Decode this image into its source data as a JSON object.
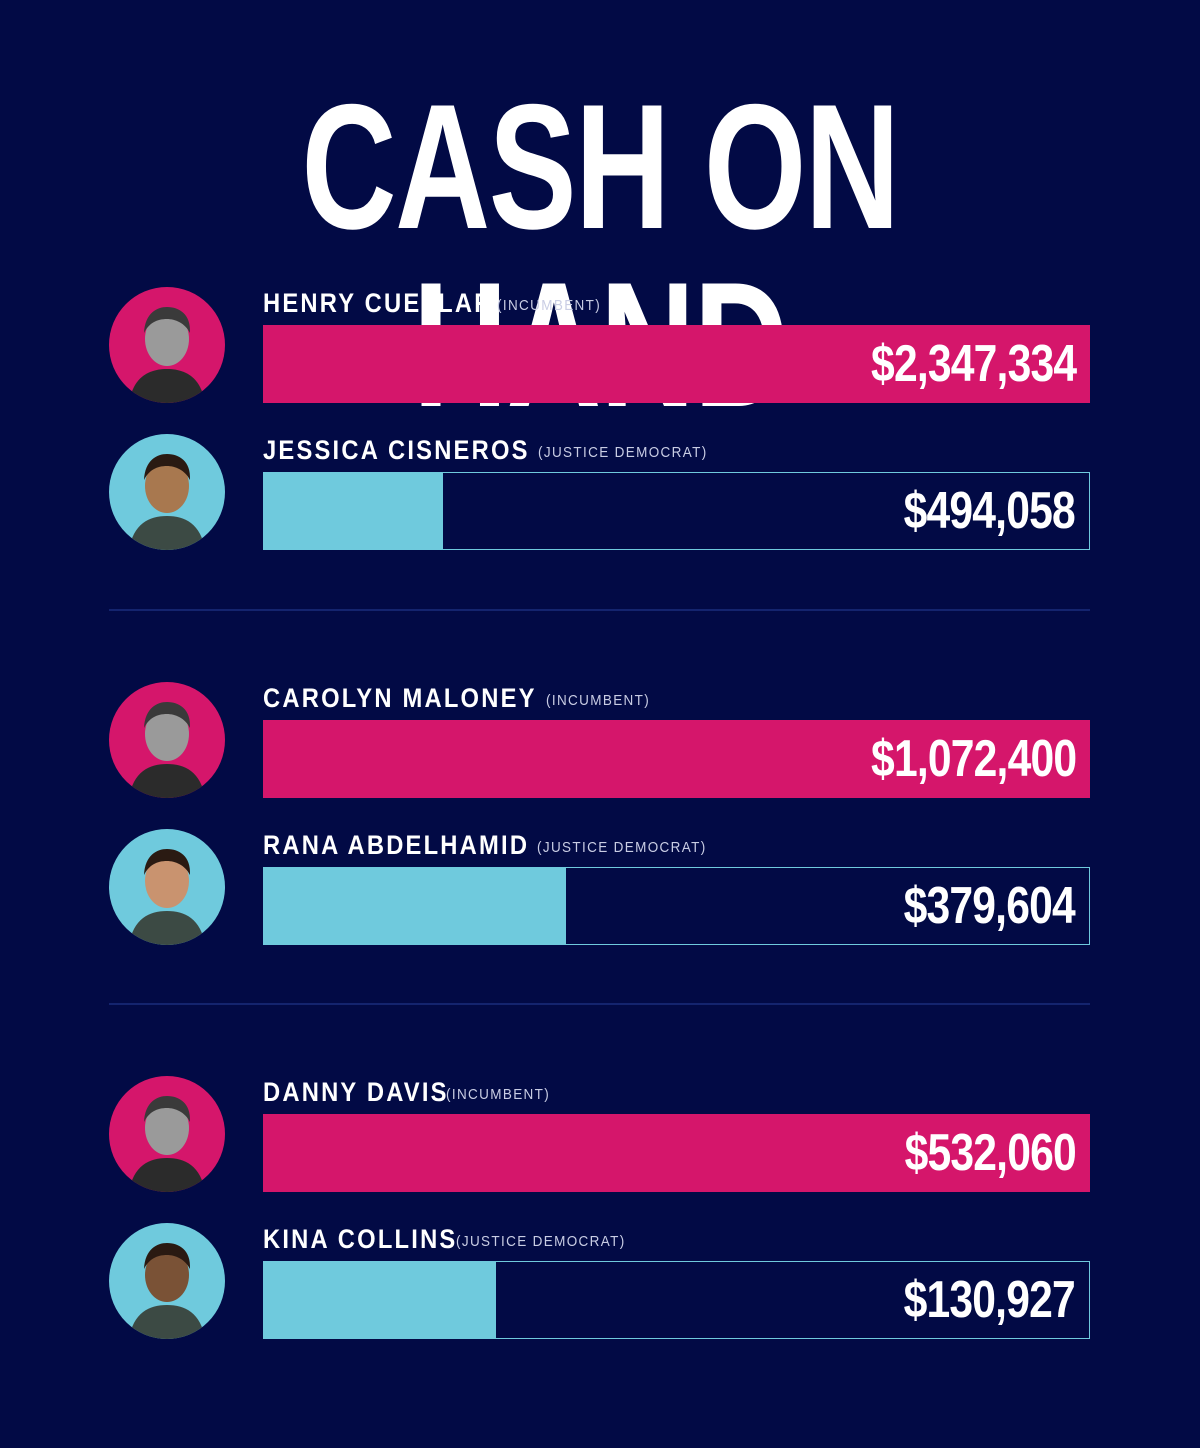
{
  "title": "CASH ON HAND",
  "colors": {
    "background": "#020a45",
    "incumbent": "#d5166b",
    "challenger": "#6fcadd"
  },
  "chart_data": {
    "type": "bar",
    "title": "CASH ON HAND",
    "xlim": [
      0,
      2347334
    ],
    "groups": [
      {
        "rows": [
          {
            "name": "HENRY CUELLAR",
            "tag": "(INCUMBENT)",
            "value": 2347334,
            "value_label": "$2,347,334",
            "fill_fraction": 1.0,
            "kind": "incumbent",
            "avatar": "henry-cuellar-portrait"
          },
          {
            "name": "JESSICA CISNEROS",
            "tag": "(JUSTICE DEMOCRAT)",
            "value": 494058,
            "value_label": "$494,058",
            "fill_fraction": 0.217,
            "kind": "challenger",
            "avatar": "jessica-cisneros-portrait"
          }
        ]
      },
      {
        "rows": [
          {
            "name": "CAROLYN MALONEY",
            "tag": "(INCUMBENT)",
            "value": 1072400,
            "value_label": "$1,072,400",
            "fill_fraction": 1.0,
            "kind": "incumbent",
            "avatar": "carolyn-maloney-portrait"
          },
          {
            "name": "RANA ABDELHAMID",
            "tag": "(JUSTICE DEMOCRAT)",
            "value": 379604,
            "value_label": "$379,604",
            "fill_fraction": 0.365,
            "kind": "challenger",
            "avatar": "rana-abdelhamid-portrait"
          }
        ]
      },
      {
        "rows": [
          {
            "name": "DANNY DAVIS",
            "tag": "(INCUMBENT)",
            "value": 532060,
            "value_label": "$532,060",
            "fill_fraction": 1.0,
            "kind": "incumbent",
            "avatar": "danny-davis-portrait"
          },
          {
            "name": "KINA COLLINS",
            "tag": "(JUSTICE DEMOCRAT)",
            "value": 130927,
            "value_label": "$130,927",
            "fill_fraction": 0.28,
            "kind": "challenger",
            "avatar": "kina-collins-portrait"
          }
        ]
      }
    ]
  }
}
